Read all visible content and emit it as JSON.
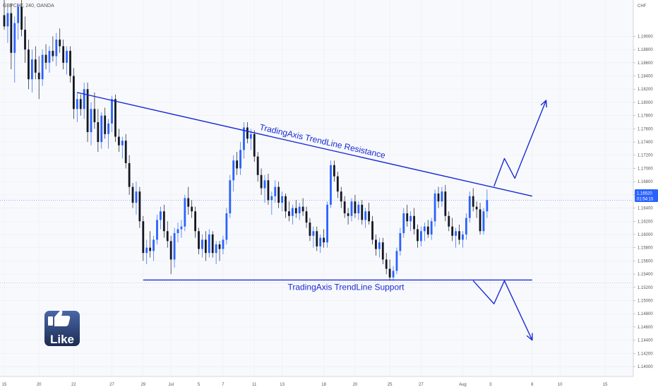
{
  "header": {
    "ticker": "GBPCHF, 240, OANDA",
    "currency": "CHF"
  },
  "price_tag": {
    "price": "1.16520",
    "countdown": "01:54:15",
    "color": "#2962ff"
  },
  "like_badge": {
    "label": "Like",
    "icon": "thumbs-up-icon",
    "colors": {
      "top": "#4a67a8",
      "bottom": "#1c2d52"
    }
  },
  "colors": {
    "bull": "#2962ff",
    "bear": "#131722",
    "trendline": "#1a2bd6",
    "axis_text": "#555555",
    "background": "#f8f9fc"
  },
  "chart_data": {
    "type": "candlestick",
    "title": "GBPCHF, 240, OANDA",
    "ylabel": "CHF",
    "ylim": [
      1.1385,
      1.1955
    ],
    "yticks": [
      1.19,
      1.188,
      1.186,
      1.184,
      1.182,
      1.18,
      1.178,
      1.176,
      1.174,
      1.172,
      1.17,
      1.168,
      1.166,
      1.164,
      1.162,
      1.16,
      1.158,
      1.156,
      1.154,
      1.152,
      1.15,
      1.148,
      1.146,
      1.144,
      1.142,
      1.14
    ],
    "ytick_labels": [
      "1.19000",
      "1.18800",
      "1.18600",
      "1.18400",
      "1.18200",
      "1.18000",
      "1.17800",
      "1.17600",
      "1.17400",
      "1.17200",
      "1.17000",
      "1.16800",
      "1.16600",
      "1.16400",
      "1.16200",
      "1.16000",
      "1.15800",
      "1.15600",
      "1.15400",
      "1.15200",
      "1.15000",
      "1.14800",
      "1.14600",
      "1.14400",
      "1.14200",
      "1.14000"
    ],
    "xlim": [
      0,
      180
    ],
    "xticks": [
      {
        "x": 0,
        "label": "15"
      },
      {
        "x": 10,
        "label": "20"
      },
      {
        "x": 20,
        "label": "22"
      },
      {
        "x": 31,
        "label": "27"
      },
      {
        "x": 40,
        "label": "29"
      },
      {
        "x": 48,
        "label": "Jul"
      },
      {
        "x": 56,
        "label": "5"
      },
      {
        "x": 63,
        "label": "7"
      },
      {
        "x": 72,
        "label": "11"
      },
      {
        "x": 80,
        "label": "13"
      },
      {
        "x": 92,
        "label": "18"
      },
      {
        "x": 101,
        "label": "20"
      },
      {
        "x": 111,
        "label": "25"
      },
      {
        "x": 120,
        "label": "27"
      },
      {
        "x": 132,
        "label": "Aug"
      },
      {
        "x": 140,
        "label": "3"
      },
      {
        "x": 152,
        "label": "8"
      },
      {
        "x": 160,
        "label": "10"
      },
      {
        "x": 173,
        "label": "15"
      }
    ],
    "crosshair_price": 1.1652,
    "support_price": 1.1527,
    "candles": [
      [
        1.1932,
        1.1955,
        1.191,
        1.1915
      ],
      [
        1.1915,
        1.1945,
        1.189,
        1.1935
      ],
      [
        1.1935,
        1.195,
        1.185,
        1.1875
      ],
      [
        1.1875,
        1.193,
        1.183,
        1.192
      ],
      [
        1.192,
        1.195,
        1.1895,
        1.1945
      ],
      [
        1.1945,
        1.1955,
        1.19,
        1.191
      ],
      [
        1.191,
        1.193,
        1.186,
        1.188
      ],
      [
        1.188,
        1.1895,
        1.182,
        1.1835
      ],
      [
        1.1835,
        1.188,
        1.1815,
        1.1865
      ],
      [
        1.1865,
        1.1885,
        1.1835,
        1.1845
      ],
      [
        1.1845,
        1.187,
        1.1805,
        1.1835
      ],
      [
        1.1835,
        1.188,
        1.1825,
        1.1872
      ],
      [
        1.1872,
        1.1888,
        1.185,
        1.186
      ],
      [
        1.186,
        1.1885,
        1.1845,
        1.1878
      ],
      [
        1.1878,
        1.19,
        1.1862,
        1.187
      ],
      [
        1.187,
        1.1905,
        1.1855,
        1.1895
      ],
      [
        1.1895,
        1.1912,
        1.1875,
        1.1885
      ],
      [
        1.1885,
        1.1895,
        1.185,
        1.186
      ],
      [
        1.186,
        1.1885,
        1.1842,
        1.1878
      ],
      [
        1.1878,
        1.1885,
        1.183,
        1.184
      ],
      [
        1.184,
        1.1852,
        1.1775,
        1.179
      ],
      [
        1.179,
        1.1815,
        1.177,
        1.1805
      ],
      [
        1.1805,
        1.1812,
        1.178,
        1.179
      ],
      [
        1.179,
        1.183,
        1.1775,
        1.182
      ],
      [
        1.182,
        1.183,
        1.174,
        1.1755
      ],
      [
        1.1755,
        1.18,
        1.1735,
        1.179
      ],
      [
        1.179,
        1.1815,
        1.176,
        1.177
      ],
      [
        1.177,
        1.179,
        1.1725,
        1.174
      ],
      [
        1.174,
        1.1785,
        1.173,
        1.178
      ],
      [
        1.178,
        1.1792,
        1.1745,
        1.1752
      ],
      [
        1.1752,
        1.1775,
        1.173,
        1.1768
      ],
      [
        1.1768,
        1.181,
        1.1755,
        1.1805
      ],
      [
        1.1805,
        1.1812,
        1.174,
        1.1748
      ],
      [
        1.1748,
        1.176,
        1.1725,
        1.1735
      ],
      [
        1.1735,
        1.1748,
        1.1715,
        1.1742
      ],
      [
        1.1742,
        1.1752,
        1.17,
        1.1708
      ],
      [
        1.1708,
        1.172,
        1.166,
        1.1672
      ],
      [
        1.1672,
        1.1678,
        1.164,
        1.1648
      ],
      [
        1.1648,
        1.168,
        1.163,
        1.1665
      ],
      [
        1.1665,
        1.1672,
        1.161,
        1.162
      ],
      [
        1.162,
        1.1628,
        1.156,
        1.1572
      ],
      [
        1.1572,
        1.1592,
        1.1555,
        1.158
      ],
      [
        1.158,
        1.1605,
        1.1565,
        1.1575
      ],
      [
        1.1575,
        1.1598,
        1.156,
        1.1592
      ],
      [
        1.1592,
        1.163,
        1.1585,
        1.1622
      ],
      [
        1.1622,
        1.1642,
        1.1608,
        1.1635
      ],
      [
        1.1635,
        1.1645,
        1.1595,
        1.1605
      ],
      [
        1.1605,
        1.162,
        1.158,
        1.159
      ],
      [
        1.159,
        1.1598,
        1.154,
        1.1562
      ],
      [
        1.1562,
        1.161,
        1.155,
        1.1602
      ],
      [
        1.1602,
        1.1618,
        1.1588,
        1.1608
      ],
      [
        1.1608,
        1.1622,
        1.1595,
        1.1612
      ],
      [
        1.1612,
        1.166,
        1.1605,
        1.1655
      ],
      [
        1.1655,
        1.1672,
        1.163,
        1.1642
      ],
      [
        1.1642,
        1.1652,
        1.1625,
        1.1635
      ],
      [
        1.1635,
        1.1642,
        1.1595,
        1.1605
      ],
      [
        1.1605,
        1.161,
        1.157,
        1.1578
      ],
      [
        1.1578,
        1.16,
        1.1565,
        1.1592
      ],
      [
        1.1592,
        1.1605,
        1.156,
        1.1572
      ],
      [
        1.1572,
        1.1608,
        1.1565,
        1.16
      ],
      [
        1.16,
        1.1605,
        1.1565,
        1.1572
      ],
      [
        1.1572,
        1.159,
        1.1555,
        1.1585
      ],
      [
        1.1585,
        1.159,
        1.156,
        1.1578
      ],
      [
        1.1578,
        1.1598,
        1.157,
        1.1592
      ],
      [
        1.1592,
        1.164,
        1.1585,
        1.1632
      ],
      [
        1.1632,
        1.169,
        1.1625,
        1.1682
      ],
      [
        1.1682,
        1.172,
        1.1665,
        1.1712
      ],
      [
        1.1712,
        1.1725,
        1.169,
        1.17
      ],
      [
        1.17,
        1.174,
        1.169,
        1.1728
      ],
      [
        1.1728,
        1.177,
        1.1715,
        1.1762
      ],
      [
        1.1762,
        1.177,
        1.1738,
        1.1745
      ],
      [
        1.1745,
        1.176,
        1.1728,
        1.1752
      ],
      [
        1.1752,
        1.1758,
        1.171,
        1.1718
      ],
      [
        1.1718,
        1.1725,
        1.168,
        1.169
      ],
      [
        1.169,
        1.17,
        1.166,
        1.167
      ],
      [
        1.167,
        1.169,
        1.1648,
        1.1682
      ],
      [
        1.1682,
        1.1692,
        1.1645,
        1.1652
      ],
      [
        1.1652,
        1.1665,
        1.163,
        1.1658
      ],
      [
        1.1658,
        1.1682,
        1.1648,
        1.1672
      ],
      [
        1.1672,
        1.168,
        1.164,
        1.1648
      ],
      [
        1.1648,
        1.1665,
        1.1635,
        1.1658
      ],
      [
        1.1658,
        1.1662,
        1.1625,
        1.1635
      ],
      [
        1.1635,
        1.165,
        1.162,
        1.1628
      ],
      [
        1.1628,
        1.1645,
        1.1615,
        1.164
      ],
      [
        1.164,
        1.1652,
        1.1625,
        1.1632
      ],
      [
        1.1632,
        1.1648,
        1.1622,
        1.1642
      ],
      [
        1.1642,
        1.1655,
        1.1628,
        1.1635
      ],
      [
        1.1635,
        1.1642,
        1.161,
        1.1618
      ],
      [
        1.1618,
        1.1625,
        1.159,
        1.1598
      ],
      [
        1.1598,
        1.1612,
        1.158,
        1.1605
      ],
      [
        1.1605,
        1.1612,
        1.1575,
        1.1582
      ],
      [
        1.1582,
        1.16,
        1.1572,
        1.1595
      ],
      [
        1.1595,
        1.1608,
        1.158,
        1.1588
      ],
      [
        1.1588,
        1.165,
        1.158,
        1.1645
      ],
      [
        1.1645,
        1.1712,
        1.164,
        1.1705
      ],
      [
        1.1705,
        1.1712,
        1.168,
        1.1688
      ],
      [
        1.1688,
        1.1695,
        1.1655,
        1.1665
      ],
      [
        1.1665,
        1.1672,
        1.164,
        1.165
      ],
      [
        1.165,
        1.1658,
        1.1625,
        1.1632
      ],
      [
        1.1632,
        1.164,
        1.1615,
        1.1628
      ],
      [
        1.1628,
        1.1655,
        1.162,
        1.165
      ],
      [
        1.165,
        1.166,
        1.1625,
        1.1632
      ],
      [
        1.1632,
        1.165,
        1.1622,
        1.1645
      ],
      [
        1.1645,
        1.1652,
        1.1615,
        1.1622
      ],
      [
        1.1622,
        1.164,
        1.161,
        1.1635
      ],
      [
        1.1635,
        1.1648,
        1.1615,
        1.162
      ],
      [
        1.162,
        1.1628,
        1.1585,
        1.1592
      ],
      [
        1.1592,
        1.16,
        1.1568,
        1.1578
      ],
      [
        1.1578,
        1.1595,
        1.1565,
        1.1588
      ],
      [
        1.1588,
        1.1595,
        1.1555,
        1.1562
      ],
      [
        1.1562,
        1.1572,
        1.154,
        1.1548
      ],
      [
        1.1548,
        1.1562,
        1.153,
        1.1535
      ],
      [
        1.1535,
        1.1552,
        1.153,
        1.1545
      ],
      [
        1.1545,
        1.158,
        1.154,
        1.1575
      ],
      [
        1.1575,
        1.161,
        1.1568,
        1.1602
      ],
      [
        1.1602,
        1.164,
        1.1595,
        1.1632
      ],
      [
        1.1632,
        1.1645,
        1.1612,
        1.162
      ],
      [
        1.162,
        1.1635,
        1.1605,
        1.1628
      ],
      [
        1.1628,
        1.164,
        1.16,
        1.1608
      ],
      [
        1.1608,
        1.1615,
        1.158,
        1.159
      ],
      [
        1.159,
        1.1612,
        1.1582,
        1.1605
      ],
      [
        1.1605,
        1.1618,
        1.159,
        1.1612
      ],
      [
        1.1612,
        1.1622,
        1.1595,
        1.16
      ],
      [
        1.16,
        1.1625,
        1.1592,
        1.162
      ],
      [
        1.162,
        1.1668,
        1.1612,
        1.1662
      ],
      [
        1.1662,
        1.1672,
        1.164,
        1.165
      ],
      [
        1.165,
        1.1672,
        1.1642,
        1.1665
      ],
      [
        1.1665,
        1.1675,
        1.162,
        1.1628
      ],
      [
        1.1628,
        1.1635,
        1.1605,
        1.1612
      ],
      [
        1.1612,
        1.1625,
        1.159,
        1.1598
      ],
      [
        1.1598,
        1.161,
        1.158,
        1.1605
      ],
      [
        1.1605,
        1.1615,
        1.1585,
        1.1592
      ],
      [
        1.1592,
        1.1605,
        1.158,
        1.16
      ],
      [
        1.16,
        1.1632,
        1.1592,
        1.1625
      ],
      [
        1.1625,
        1.1665,
        1.1618,
        1.1658
      ],
      [
        1.1658,
        1.167,
        1.1635,
        1.1642
      ],
      [
        1.1642,
        1.165,
        1.1625,
        1.1638
      ],
      [
        1.1638,
        1.1648,
        1.16,
        1.1605
      ],
      [
        1.1605,
        1.164,
        1.16,
        1.1635
      ],
      [
        1.1635,
        1.1668,
        1.1625,
        1.1652
      ]
    ],
    "annotations": [
      {
        "id": "resistance",
        "type": "trendline",
        "label": "TradingAxis TrendLine Resistance",
        "from": [
          21,
          1.1815
        ],
        "to": [
          152,
          1.1658
        ]
      },
      {
        "id": "support",
        "type": "horizontal",
        "label": "TradingAxis TrendLine Support",
        "from": [
          40,
          1.1531
        ],
        "to": [
          152,
          1.1531
        ]
      },
      {
        "id": "bullish-path",
        "type": "arrow-path",
        "points": [
          [
            141,
            1.1673
          ],
          [
            144,
            1.1715
          ],
          [
            147,
            1.1685
          ],
          [
            156,
            1.1803
          ]
        ]
      },
      {
        "id": "bearish-path",
        "type": "arrow-path",
        "points": [
          [
            135,
            1.153
          ],
          [
            141,
            1.1495
          ],
          [
            144,
            1.153
          ],
          [
            152,
            1.144
          ]
        ]
      }
    ]
  }
}
